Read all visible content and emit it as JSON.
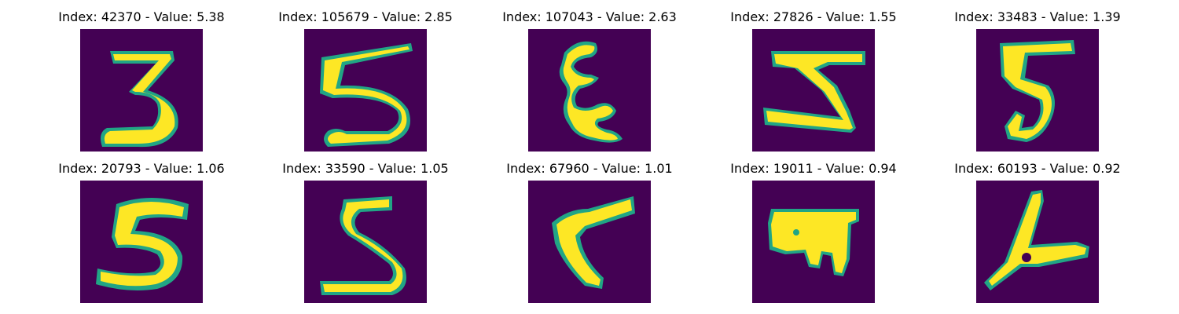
{
  "colors": {
    "background": "#440154",
    "stroke_inner": "#fde725",
    "stroke_edge": "#21a585"
  },
  "panels": [
    {
      "title": "Index: 42370 - Value: 5.38",
      "glyph": "3"
    },
    {
      "title": "Index: 105679 - Value: 2.85",
      "glyph": "5"
    },
    {
      "title": "Index: 107043 - Value: 2.63",
      "glyph": "E"
    },
    {
      "title": "Index: 27826 - Value: 1.55",
      "glyph": "Z"
    },
    {
      "title": "Index: 33483 - Value: 1.39",
      "glyph": "5"
    },
    {
      "title": "Index: 20793 - Value: 1.06",
      "glyph": "5"
    },
    {
      "title": "Index: 33590 - Value: 1.05",
      "glyph": "5"
    },
    {
      "title": "Index: 67960 - Value: 1.01",
      "glyph": "L"
    },
    {
      "title": "Index: 19011 - Value: 0.94",
      "glyph": "blob"
    },
    {
      "title": "Index: 60193 - Value: 0.92",
      "glyph": "A"
    }
  ]
}
